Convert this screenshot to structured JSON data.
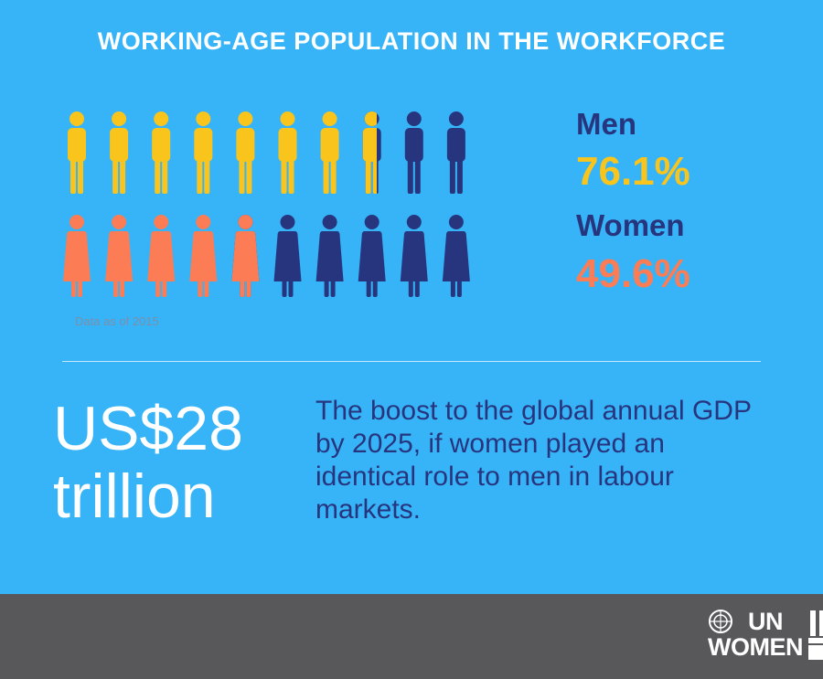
{
  "header": {
    "title": "WORKING-AGE POPULATION IN THE WORKFORCE"
  },
  "chart_data": {
    "type": "pictogram",
    "title": "WORKING-AGE POPULATION IN THE WORKFORCE",
    "icons_per_row": 10,
    "series": [
      {
        "name": "Men",
        "value": 76.1,
        "value_label": "76.1%",
        "color": "#f9c51c",
        "remainder_color": "#27357e"
      },
      {
        "name": "Women",
        "value": 49.6,
        "value_label": "49.6%",
        "color": "#fb7c55",
        "remainder_color": "#27357e"
      }
    ],
    "note": "Data as of 2015"
  },
  "stat": {
    "amount_line1": "US$28",
    "amount_line2": "trillion",
    "description": "The boost to the global annual GDP by 2025, if women played an identical role to men in labour markets."
  },
  "footer": {
    "logo_line1": "UN",
    "logo_line2": "WOMEN",
    "background": "#58585a"
  },
  "colors": {
    "background": "#37b4f7",
    "navy": "#27357e",
    "yellow": "#f9c51c",
    "orange": "#fb7c55"
  }
}
